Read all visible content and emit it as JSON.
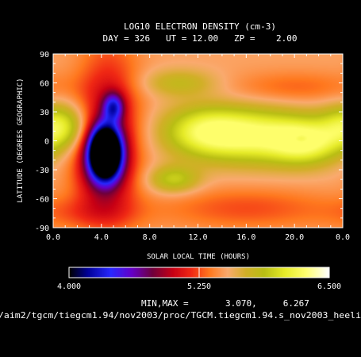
{
  "chart_data": {
    "type": "heatmap",
    "title": "LOG10 ELECTRON DENSITY (cm-3)",
    "subtitle": "DAY = 326   UT = 12.00   ZP =    2.00",
    "xlabel": "SOLAR LOCAL TIME (HOURS)",
    "ylabel": "LATITUDE (DEGREES GEOGRAPHIC)",
    "xlim": [
      0.0,
      24.0
    ],
    "ylim": [
      -90,
      90
    ],
    "x_ticks": [
      "0.0",
      "4.0",
      "8.0",
      "12.0",
      "16.0",
      "20.0",
      "0.0"
    ],
    "y_ticks": [
      "90",
      "60",
      "30",
      "0",
      "-30",
      "-60",
      "-90"
    ],
    "colorbar": {
      "min": 4.0,
      "max": 6.5,
      "tick_labels": [
        "4.000",
        "5.250",
        "6.500"
      ]
    },
    "stats_text": "MIN,MAX =       3.070,     6.267",
    "source_path": "/aim2/tgcm/tiegcm1.94/nov2003/proc/TGCM.tiegcm1.94.s_nov2003_heeli",
    "field": {
      "min": 3.07,
      "max": 6.267,
      "background": 5.5,
      "features": [
        {
          "x": 4.3,
          "y": -12,
          "sx": 0.9,
          "sy": 18,
          "amp": -2.25
        },
        {
          "x": 5.0,
          "y": 35,
          "sx": 0.6,
          "sy": 10,
          "amp": -0.75
        },
        {
          "x": 4.6,
          "y": 10,
          "sx": 1.8,
          "sy": 60,
          "amp": -0.55
        },
        {
          "x": 4.0,
          "y": -30,
          "sx": 1.6,
          "sy": 25,
          "amp": -0.35
        },
        {
          "x": 0.6,
          "y": 15,
          "sx": 1.6,
          "sy": 16,
          "amp": 0.6
        },
        {
          "x": 10.5,
          "y": 60,
          "sx": 2.2,
          "sy": 10,
          "amp": 0.3
        },
        {
          "x": 12.5,
          "y": 10,
          "sx": 2.5,
          "sy": 18,
          "amp": 0.55
        },
        {
          "x": 17.0,
          "y": 5,
          "sx": 3.5,
          "sy": 20,
          "amp": 0.7
        },
        {
          "x": 21.0,
          "y": -2,
          "sx": 2.0,
          "sy": 16,
          "amp": 0.55
        },
        {
          "x": 10.0,
          "y": -40,
          "sx": 1.5,
          "sy": 10,
          "amp": 0.45
        },
        {
          "x": 20.0,
          "y": 55,
          "sx": 4.0,
          "sy": 12,
          "amp": -0.2
        },
        {
          "x": 16.0,
          "y": -70,
          "sx": 5.0,
          "sy": 15,
          "amp": -0.25
        },
        {
          "x": 3.0,
          "y": -75,
          "sx": 3.0,
          "sy": 12,
          "amp": -0.2
        },
        {
          "x": 20.5,
          "y": 2,
          "sx": 0.6,
          "sy": 4,
          "amp": -0.25
        }
      ]
    }
  }
}
